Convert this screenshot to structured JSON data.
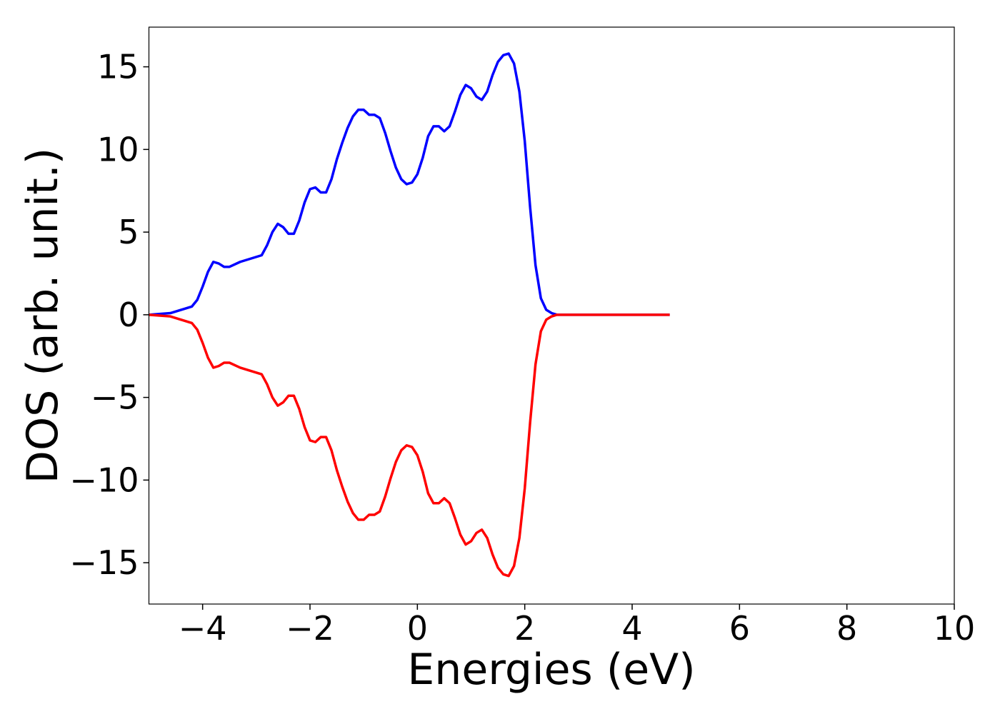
{
  "chart_data": {
    "type": "line",
    "xlabel": "Energies (eV)",
    "ylabel": "DOS (arb. unit.)",
    "x": [
      -5,
      -4.6,
      -4.4,
      -4.2,
      -4.1,
      -4.0,
      -3.9,
      -3.8,
      -3.7,
      -3.6,
      -3.5,
      -3.3,
      -3.1,
      -2.9,
      -2.8,
      -2.7,
      -2.6,
      -2.5,
      -2.4,
      -2.3,
      -2.2,
      -2.1,
      -2.0,
      -1.9,
      -1.8,
      -1.7,
      -1.6,
      -1.5,
      -1.4,
      -1.3,
      -1.2,
      -1.1,
      -1.0,
      -0.9,
      -0.8,
      -0.7,
      -0.6,
      -0.5,
      -0.4,
      -0.3,
      -0.2,
      -0.1,
      0,
      0.1,
      0.2,
      0.3,
      0.4,
      0.5,
      0.6,
      0.7,
      0.8,
      0.9,
      1.0,
      1.1,
      1.2,
      1.3,
      1.4,
      1.5,
      1.6,
      1.7,
      1.8,
      1.9,
      2.0,
      2.1,
      2.2,
      2.3,
      2.4,
      2.5,
      2.6,
      2.7,
      4.7
    ],
    "series": [
      {
        "color": "#0000ff",
        "values": [
          0,
          0.1,
          0.3,
          0.5,
          0.9,
          1.7,
          2.6,
          3.2,
          3.1,
          2.9,
          2.9,
          3.2,
          3.4,
          3.6,
          4.2,
          5.0,
          5.5,
          5.3,
          4.9,
          4.9,
          5.7,
          6.8,
          7.6,
          7.7,
          7.4,
          7.4,
          8.2,
          9.4,
          10.4,
          11.3,
          12.0,
          12.4,
          12.4,
          12.1,
          12.1,
          11.9,
          11.0,
          9.9,
          8.9,
          8.2,
          7.9,
          8.0,
          8.5,
          9.5,
          10.8,
          11.4,
          11.4,
          11.1,
          11.4,
          12.3,
          13.3,
          13.9,
          13.7,
          13.2,
          13.0,
          13.5,
          14.5,
          15.3,
          15.7,
          15.8,
          15.2,
          13.5,
          10.5,
          6.5,
          3.0,
          1.0,
          0.3,
          0.1,
          0,
          0,
          0
        ]
      },
      {
        "color": "#ff0000",
        "values": [
          0,
          -0.1,
          -0.3,
          -0.5,
          -0.9,
          -1.7,
          -2.6,
          -3.2,
          -3.1,
          -2.9,
          -2.9,
          -3.2,
          -3.4,
          -3.6,
          -4.2,
          -5.0,
          -5.5,
          -5.3,
          -4.9,
          -4.9,
          -5.7,
          -6.8,
          -7.6,
          -7.7,
          -7.4,
          -7.4,
          -8.2,
          -9.4,
          -10.4,
          -11.3,
          -12.0,
          -12.4,
          -12.4,
          -12.1,
          -12.1,
          -11.9,
          -11.0,
          -9.9,
          -8.9,
          -8.2,
          -7.9,
          -8.0,
          -8.5,
          -9.5,
          -10.8,
          -11.4,
          -11.4,
          -11.1,
          -11.4,
          -12.3,
          -13.3,
          -13.9,
          -13.7,
          -13.2,
          -13.0,
          -13.5,
          -14.5,
          -15.3,
          -15.7,
          -15.8,
          -15.2,
          -13.5,
          -10.5,
          -6.5,
          -3.0,
          -1.0,
          -0.3,
          -0.1,
          0,
          0,
          0
        ]
      }
    ],
    "xlim": [
      -5,
      10
    ],
    "xticks": [
      {
        "value": -4,
        "label": "−4"
      },
      {
        "value": -2,
        "label": "−2"
      },
      0,
      2,
      4,
      6,
      8,
      10
    ],
    "ylim": [
      -17.5,
      17.4
    ],
    "yticks": [
      {
        "value": -15,
        "label": "−15"
      },
      {
        "value": -10,
        "label": "−10"
      },
      {
        "value": -5,
        "label": "−5"
      },
      0,
      5,
      10,
      15
    ]
  }
}
